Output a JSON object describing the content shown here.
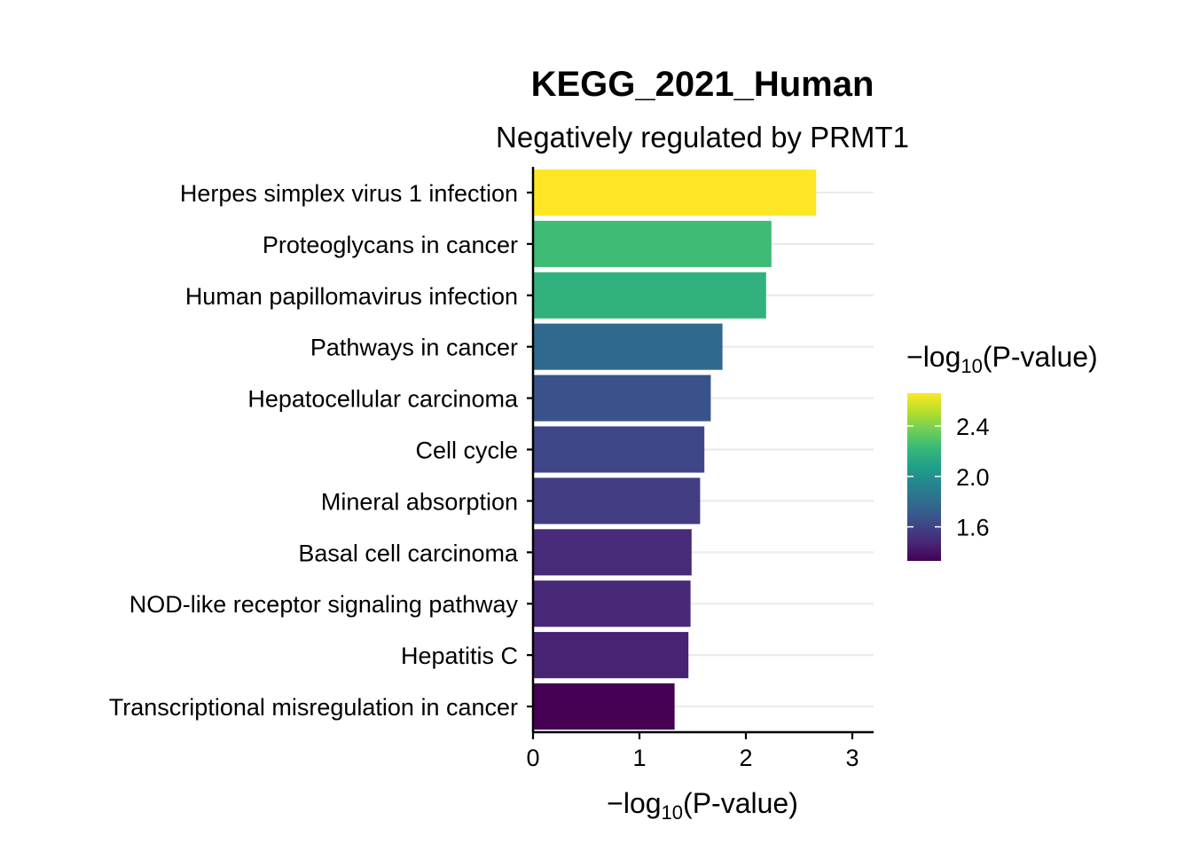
{
  "chart_data": {
    "type": "bar",
    "orientation": "horizontal",
    "title": "KEGG_2021_Human",
    "subtitle": "Negatively regulated by PRMT1",
    "xlabel": "−log10(P-value)",
    "xlabel_parts": {
      "prefix": "−log",
      "subscript": "10",
      "suffix": "(P-value)"
    },
    "ylabel": "",
    "xlim": [
      0,
      3.2
    ],
    "xticks": [
      0,
      1,
      2,
      3
    ],
    "grid": "horizontal major lines",
    "categories": [
      "Herpes simplex virus 1 infection",
      "Proteoglycans in cancer",
      "Human papillomavirus infection",
      "Pathways in cancer",
      "Hepatocellular carcinoma",
      "Cell cycle",
      "Mineral absorption",
      "Basal cell carcinoma",
      "NOD-like receptor signaling pathway",
      "Hepatitis C",
      "Transcriptional misregulation in cancer"
    ],
    "values": [
      2.66,
      2.24,
      2.19,
      1.78,
      1.67,
      1.61,
      1.57,
      1.49,
      1.48,
      1.46,
      1.33
    ],
    "legend": {
      "title": "−log10(P-value)",
      "title_parts": {
        "prefix": "−log",
        "subscript": "10",
        "suffix": "(P-value)"
      },
      "placement": "right",
      "colormap": "viridis",
      "range": [
        1.33,
        2.66
      ],
      "ticks": [
        1.6,
        2.0,
        2.4
      ],
      "tick_labels": [
        "1.6",
        "2.0",
        "2.4"
      ]
    }
  }
}
